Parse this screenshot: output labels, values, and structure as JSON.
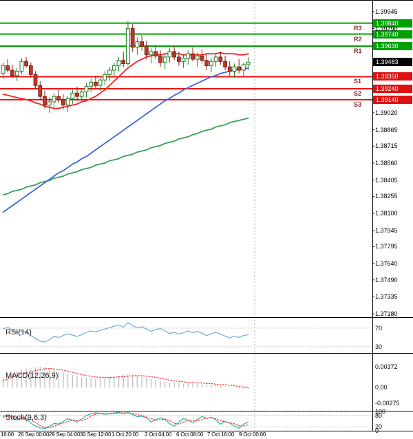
{
  "chart_data": {
    "type": "candlestick",
    "main": {
      "ylim": [
        1.37168,
        1.40052
      ],
      "bull_color": "#ffffff",
      "bull_border": "#1f7d1f",
      "bear_color": "#c0392b",
      "bear_border": "#7e1f16",
      "y_axis_labels": [
        "1.39945",
        "1.39790",
        "1.39020",
        "1.38865",
        "1.38715",
        "1.38560",
        "1.38405",
        "1.38255",
        "1.38100",
        "1.37945",
        "1.37795",
        "1.37640",
        "1.37490",
        "1.37335",
        "1.37180"
      ],
      "pivot_levels": [
        {
          "label": "R3",
          "price": 1.3984,
          "text": "1.39840",
          "line_color": "#00a000",
          "box_color": "#00a000",
          "label_color": "#8b2323"
        },
        {
          "label": "R2",
          "price": 1.3974,
          "text": "1.39740",
          "line_color": "#00a000",
          "box_color": "#00a000",
          "label_color": "#8b2323"
        },
        {
          "label": "R1",
          "price": 1.3963,
          "text": "1.39630",
          "line_color": "#00a000",
          "box_color": "#00a000",
          "label_color": "#8b2323"
        },
        {
          "label": "S1",
          "price": 1.3935,
          "text": "1.39350",
          "line_color": "#f01010",
          "box_color": "#e01010",
          "label_color": "#8b2323"
        },
        {
          "label": "S2",
          "price": 1.3924,
          "text": "1.39240",
          "line_color": "#f01010",
          "box_color": "#e01010",
          "label_color": "#8b2323"
        },
        {
          "label": "S3",
          "price": 1.3914,
          "text": "1.39140",
          "line_color": "#f01010",
          "box_color": "#e01010",
          "label_color": "#8b2323"
        }
      ],
      "current_price": {
        "text": "1.39483",
        "price": 1.39483,
        "box_color": "#000000"
      },
      "separator_x": 370,
      "candles": [
        [
          1.3938,
          1.3948,
          1.3933,
          1.3945
        ],
        [
          1.3945,
          1.3951,
          1.3939,
          1.3941
        ],
        [
          1.3941,
          1.3946,
          1.3934,
          1.3936
        ],
        [
          1.3936,
          1.3943,
          1.3931,
          1.394
        ],
        [
          1.394,
          1.3952,
          1.3937,
          1.3949
        ],
        [
          1.3949,
          1.3953,
          1.3943,
          1.3945
        ],
        [
          1.3945,
          1.3948,
          1.3934,
          1.3937
        ],
        [
          1.3937,
          1.394,
          1.3924,
          1.3927
        ],
        [
          1.3927,
          1.3931,
          1.3914,
          1.3917
        ],
        [
          1.3917,
          1.3922,
          1.3906,
          1.3909
        ],
        [
          1.3909,
          1.3916,
          1.3902,
          1.3912
        ],
        [
          1.3912,
          1.392,
          1.3907,
          1.3917
        ],
        [
          1.3917,
          1.3923,
          1.3911,
          1.3914
        ],
        [
          1.3914,
          1.3919,
          1.3905,
          1.3909
        ],
        [
          1.3909,
          1.3917,
          1.3903,
          1.3915
        ],
        [
          1.3915,
          1.3923,
          1.391,
          1.392
        ],
        [
          1.392,
          1.3926,
          1.3913,
          1.3917
        ],
        [
          1.3917,
          1.3924,
          1.3912,
          1.3921
        ],
        [
          1.3921,
          1.3929,
          1.3916,
          1.3926
        ],
        [
          1.3926,
          1.3933,
          1.3921,
          1.393
        ],
        [
          1.393,
          1.3936,
          1.3924,
          1.3927
        ],
        [
          1.3927,
          1.3934,
          1.3922,
          1.3932
        ],
        [
          1.3932,
          1.394,
          1.3927,
          1.3937
        ],
        [
          1.3937,
          1.3944,
          1.3931,
          1.3941
        ],
        [
          1.3941,
          1.3948,
          1.3936,
          1.3945
        ],
        [
          1.3945,
          1.3953,
          1.394,
          1.395
        ],
        [
          1.395,
          1.3958,
          1.3944,
          1.3947
        ],
        [
          1.3947,
          1.3986,
          1.3945,
          1.3979
        ],
        [
          1.3979,
          1.3983,
          1.3958,
          1.3962
        ],
        [
          1.3962,
          1.3971,
          1.3955,
          1.3967
        ],
        [
          1.3967,
          1.3973,
          1.3959,
          1.3963
        ],
        [
          1.3963,
          1.3968,
          1.3951,
          1.3955
        ],
        [
          1.3955,
          1.3961,
          1.3947,
          1.3958
        ],
        [
          1.3958,
          1.3964,
          1.3951,
          1.3954
        ],
        [
          1.3954,
          1.3959,
          1.3944,
          1.3948
        ],
        [
          1.3948,
          1.3956,
          1.3942,
          1.3953
        ],
        [
          1.3953,
          1.3961,
          1.3948,
          1.3958
        ],
        [
          1.3958,
          1.3963,
          1.395,
          1.3953
        ],
        [
          1.3953,
          1.3958,
          1.3945,
          1.3949
        ],
        [
          1.3949,
          1.3955,
          1.3943,
          1.3952
        ],
        [
          1.3952,
          1.3959,
          1.3946,
          1.3956
        ],
        [
          1.3956,
          1.3962,
          1.3949,
          1.3951
        ],
        [
          1.3951,
          1.3957,
          1.3944,
          1.3954
        ],
        [
          1.3954,
          1.396,
          1.3947,
          1.395
        ],
        [
          1.395,
          1.3956,
          1.3941,
          1.3945
        ],
        [
          1.3945,
          1.3952,
          1.3939,
          1.3949
        ],
        [
          1.3949,
          1.3956,
          1.3944,
          1.3953
        ],
        [
          1.3953,
          1.3958,
          1.3946,
          1.3949
        ],
        [
          1.3949,
          1.3954,
          1.3941,
          1.3944
        ],
        [
          1.3944,
          1.3949,
          1.3936,
          1.394
        ],
        [
          1.394,
          1.3947,
          1.3934,
          1.3944
        ],
        [
          1.3944,
          1.3951,
          1.3938,
          1.3941
        ],
        [
          1.3941,
          1.3948,
          1.3935,
          1.3946
        ],
        [
          1.3946,
          1.3953,
          1.3941,
          1.39483
        ]
      ],
      "moving_averages": [
        {
          "name": "fast-ma",
          "color": "#ff1e1e",
          "values": [
            1.3919,
            1.3918,
            1.3917,
            1.3916,
            1.3915,
            1.3914,
            1.3913,
            1.3911,
            1.391,
            1.3908,
            1.3907,
            1.3906,
            1.3906,
            1.3907,
            1.3908,
            1.3909,
            1.391,
            1.3912,
            1.3913,
            1.3915,
            1.3917,
            1.392,
            1.3923,
            1.3927,
            1.3931,
            1.3935,
            1.3939,
            1.3943,
            1.3946,
            1.3949,
            1.3951,
            1.3953,
            1.3954,
            1.3955,
            1.3955,
            1.3956,
            1.3956,
            1.3956,
            1.3956,
            1.3955,
            1.3955,
            1.3955,
            1.3955,
            1.3955,
            1.3956,
            1.3956,
            1.3956,
            1.3957,
            1.3956,
            1.3956,
            1.3956,
            1.3955,
            1.3955,
            1.3956
          ]
        },
        {
          "name": "medium-ma",
          "color": "#3c66d8",
          "values": [
            1.3811,
            1.3814,
            1.3817,
            1.382,
            1.3823,
            1.3826,
            1.3829,
            1.3832,
            1.3835,
            1.3838,
            1.3841,
            1.3844,
            1.3847,
            1.3849,
            1.3852,
            1.3855,
            1.3857,
            1.386,
            1.3862,
            1.3865,
            1.3868,
            1.3871,
            1.3874,
            1.3877,
            1.388,
            1.3883,
            1.3886,
            1.3889,
            1.3892,
            1.3895,
            1.3898,
            1.3901,
            1.3904,
            1.3907,
            1.391,
            1.3913,
            1.3915,
            1.3918,
            1.392,
            1.3923,
            1.3925,
            1.3927,
            1.3929,
            1.3931,
            1.3933,
            1.3935,
            1.3936,
            1.3938,
            1.3939,
            1.394,
            1.3941,
            1.3942,
            1.3942,
            1.3943
          ]
        },
        {
          "name": "slow-ma",
          "color": "#36a056",
          "values": [
            1.3827,
            1.3828,
            1.383,
            1.3831,
            1.3832,
            1.3834,
            1.3835,
            1.3836,
            1.3838,
            1.3839,
            1.384,
            1.3842,
            1.3843,
            1.3844,
            1.3846,
            1.3847,
            1.3848,
            1.385,
            1.3851,
            1.3852,
            1.3854,
            1.3855,
            1.3856,
            1.3858,
            1.3859,
            1.386,
            1.3862,
            1.3863,
            1.3864,
            1.3866,
            1.3867,
            1.3868,
            1.387,
            1.3871,
            1.3872,
            1.3874,
            1.3875,
            1.3876,
            1.3878,
            1.3879,
            1.388,
            1.3882,
            1.3883,
            1.3885,
            1.3886,
            1.3887,
            1.3889,
            1.389,
            1.3891,
            1.3893,
            1.3894,
            1.3895,
            1.3896,
            1.3897
          ]
        }
      ]
    },
    "indicators": [
      {
        "name": "rsi",
        "title": "RSI(14)",
        "ylim": [
          18,
          92
        ],
        "levels": [
          {
            "text": "70",
            "value": 70,
            "line": true
          },
          {
            "text": "30",
            "value": 30,
            "line": true
          }
        ],
        "series": [
          {
            "name": "rsi",
            "color": "#6fa8dc",
            "dash": false,
            "values": [
              68,
              72,
              66,
              60,
              64,
              61,
              54,
              48,
              42,
              40,
              45,
              52,
              50,
              54,
              58,
              55,
              52,
              56,
              61,
              64,
              62,
              65,
              68,
              71,
              74,
              77,
              72,
              82,
              75,
              71,
              73,
              68,
              63,
              67,
              69,
              64,
              58,
              61,
              57,
              60,
              64,
              60,
              63,
              59,
              54,
              58,
              61,
              57,
              53,
              49,
              53,
              50,
              54,
              56
            ]
          }
        ]
      },
      {
        "name": "macd",
        "title": "MACD(12,26,9)",
        "ylim": [
          -0.004,
          0.006
        ],
        "levels": [
          {
            "text": "0.00372",
            "value": 0.00372,
            "line": false
          },
          {
            "text": "0.00",
            "value": 0,
            "line": false
          },
          {
            "text": "-0.00275",
            "value": -0.00275,
            "line": false
          }
        ],
        "histogram": {
          "color": "#c0c0c0",
          "values": [
            0.0018,
            0.0022,
            0.0026,
            0.0029,
            0.0031,
            0.0033,
            0.0035,
            0.0036,
            0.00372,
            0.0036,
            0.0034,
            0.0031,
            0.0028,
            0.0026,
            0.0024,
            0.0022,
            0.002,
            0.0018,
            0.0017,
            0.0016,
            0.0016,
            0.0017,
            0.0018,
            0.0019,
            0.002,
            0.0021,
            0.0022,
            0.0023,
            0.0022,
            0.0021,
            0.0019,
            0.0017,
            0.0015,
            0.0014,
            0.0012,
            0.001,
            0.0009,
            0.0009,
            0.0008,
            0.0007,
            0.0007,
            0.0007,
            0.0006,
            0.0006,
            0.0005,
            0.0005,
            0.0004,
            0.0003,
            0.0002,
            0.0001,
            0.0,
            -0.0001,
            -0.0002,
            -0.0002
          ]
        },
        "series": [
          {
            "name": "macd-signal",
            "color": "#ff2a2a",
            "dash": true,
            "values": [
              0.0012,
              0.0015,
              0.0018,
              0.0021,
              0.0024,
              0.0026,
              0.0028,
              0.003,
              0.0032,
              0.0033,
              0.0034,
              0.0033,
              0.0032,
              0.0031,
              0.0029,
              0.0027,
              0.0025,
              0.0023,
              0.0021,
              0.002,
              0.0019,
              0.0018,
              0.0018,
              0.0018,
              0.0018,
              0.0019,
              0.0019,
              0.002,
              0.0021,
              0.0021,
              0.0021,
              0.002,
              0.0019,
              0.0018,
              0.0016,
              0.0015,
              0.0013,
              0.0012,
              0.0011,
              0.001,
              0.0009,
              0.0009,
              0.0008,
              0.0008,
              0.0007,
              0.0007,
              0.0006,
              0.0005,
              0.0005,
              0.0004,
              0.0003,
              0.0002,
              0.0001,
              0.0
            ]
          }
        ]
      },
      {
        "name": "stoch",
        "title": "Stoch(9,6,3)",
        "ylim": [
          0,
          100
        ],
        "levels": [
          {
            "text": "100",
            "value": 100,
            "line": false
          },
          {
            "text": "80",
            "value": 80,
            "line": true
          },
          {
            "text": "20",
            "value": 20,
            "line": true
          },
          {
            "text": "0",
            "value": 0,
            "line": false
          }
        ],
        "series": [
          {
            "name": "stoch-k",
            "color": "#27b2a5",
            "dash": false,
            "values": [
              75,
              82,
              68,
              55,
              70,
              62,
              40,
              25,
              15,
              12,
              22,
              38,
              35,
              48,
              62,
              55,
              45,
              60,
              78,
              88,
              93,
              90,
              85,
              88,
              92,
              96,
              88,
              95,
              85,
              72,
              76,
              66,
              46,
              56,
              68,
              58,
              36,
              24,
              46,
              64,
              54,
              42,
              58,
              74,
              64,
              70,
              56,
              34,
              48,
              40,
              24,
              14,
              34,
              46
            ]
          },
          {
            "name": "stoch-d",
            "color": "#ff2a2a",
            "dash": true,
            "values": [
              70,
              75,
              75,
              68,
              64,
              62,
              57,
              42,
              27,
              17,
              16,
              24,
              32,
              40,
              48,
              55,
              54,
              53,
              61,
              75,
              86,
              90,
              89,
              88,
              88,
              92,
              92,
              93,
              89,
              84,
              78,
              71,
              63,
              56,
              57,
              61,
              53,
              39,
              35,
              45,
              55,
              53,
              51,
              58,
              65,
              69,
              63,
              53,
              46,
              41,
              37,
              26,
              24,
              31
            ]
          }
        ]
      }
    ],
    "time_axis": [
      {
        "text": "16:00",
        "x": 1
      },
      {
        "text": "26 Sep 00:00",
        "x": 26
      },
      {
        "text": "29 Sep 04:00",
        "x": 71
      },
      {
        "text": "30 Sep 12:00",
        "x": 116
      },
      {
        "text": "1 Oct 20:00",
        "x": 162
      },
      {
        "text": "3 Oct 04:00",
        "x": 210
      },
      {
        "text": "6 Oct 08:00",
        "x": 256
      },
      {
        "text": "7 Oct 16:00",
        "x": 301
      },
      {
        "text": "9 Oct 00:00",
        "x": 347
      }
    ]
  }
}
